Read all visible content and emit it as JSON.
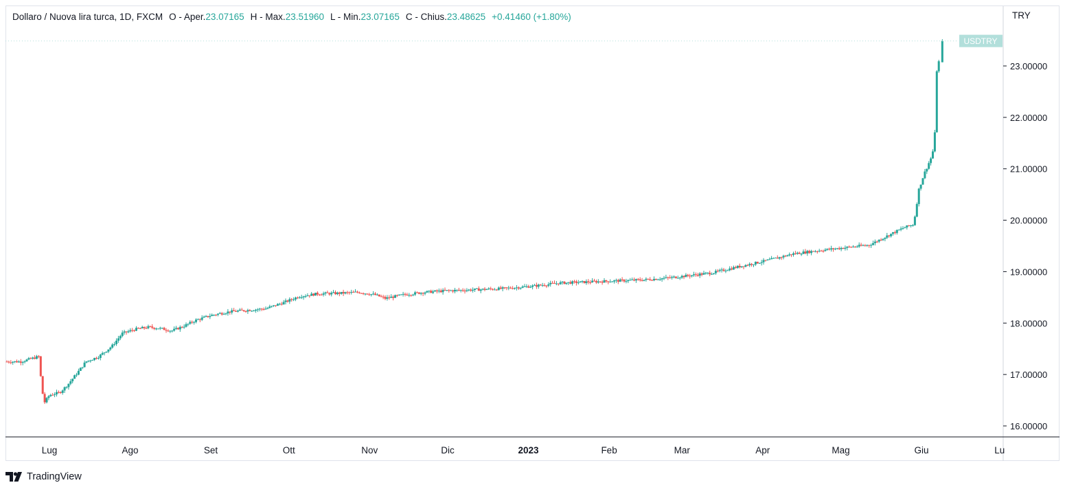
{
  "legend": {
    "symbol": "Dollaro / Nuova lira turca, 1D, FXCM",
    "open_label": "O - Aper.",
    "open": "23.07165",
    "high_label": "H - Max.",
    "high": "23.51960",
    "low_label": "L - Min.",
    "low": "23.07165",
    "close_label": "C - Chius.",
    "close": "23.48625",
    "change": "+0.41460 (+1.80%)"
  },
  "currency": "TRY",
  "watermark": "TradingView",
  "colors": {
    "up": "#26a69a",
    "down": "#ef5350",
    "badge": "#b2dfdb",
    "grid_line": "#e0e3eb"
  },
  "chart_data": {
    "type": "candlestick",
    "symbol": "USDTRY",
    "price_badge": "USDTRY",
    "ylim": [
      15.8,
      23.8
    ],
    "y_ticks": [
      "16.00000",
      "17.00000",
      "18.00000",
      "19.00000",
      "20.00000",
      "21.00000",
      "22.00000",
      "23.00000"
    ],
    "x_tick_labels": [
      "Lug",
      "Ago",
      "Set",
      "Ott",
      "Nov",
      "Dic",
      "2023",
      "Feb",
      "Mar",
      "Apr",
      "Mag",
      "Giu",
      "Lu"
    ],
    "x_tick_dates": [
      "2022-07-01",
      "2022-08-01",
      "2022-09-01",
      "2022-10-01",
      "2022-11-01",
      "2022-12-01",
      "2023-01-01",
      "2023-02-01",
      "2023-03-01",
      "2023-04-01",
      "2023-05-01",
      "2023-06-01",
      "2023-07-01"
    ],
    "close_series": [
      [
        "2022-06-20",
        17.25
      ],
      [
        "2022-06-27",
        17.35
      ],
      [
        "2022-06-28",
        16.75
      ],
      [
        "2022-06-29",
        16.45
      ],
      [
        "2022-07-01",
        16.6
      ],
      [
        "2022-07-05",
        16.65
      ],
      [
        "2022-07-08",
        16.8
      ],
      [
        "2022-07-12",
        17.05
      ],
      [
        "2022-07-15",
        17.25
      ],
      [
        "2022-07-20",
        17.35
      ],
      [
        "2022-07-25",
        17.55
      ],
      [
        "2022-07-29",
        17.8
      ],
      [
        "2022-08-03",
        17.88
      ],
      [
        "2022-08-08",
        17.92
      ],
      [
        "2022-08-12",
        17.9
      ],
      [
        "2022-08-17",
        17.85
      ],
      [
        "2022-08-22",
        17.95
      ],
      [
        "2022-08-26",
        18.05
      ],
      [
        "2022-09-01",
        18.15
      ],
      [
        "2022-09-08",
        18.22
      ],
      [
        "2022-09-15",
        18.25
      ],
      [
        "2022-09-22",
        18.28
      ],
      [
        "2022-09-29",
        18.4
      ],
      [
        "2022-10-05",
        18.52
      ],
      [
        "2022-10-12",
        18.57
      ],
      [
        "2022-10-20",
        18.58
      ],
      [
        "2022-10-28",
        18.6
      ],
      [
        "2022-11-03",
        18.55
      ],
      [
        "2022-11-07",
        18.48
      ],
      [
        "2022-11-14",
        18.55
      ],
      [
        "2022-11-22",
        18.6
      ],
      [
        "2022-12-01",
        18.63
      ],
      [
        "2022-12-12",
        18.65
      ],
      [
        "2022-12-22",
        18.67
      ],
      [
        "2023-01-03",
        18.72
      ],
      [
        "2023-01-13",
        18.78
      ],
      [
        "2023-01-24",
        18.8
      ],
      [
        "2023-02-03",
        18.82
      ],
      [
        "2023-02-14",
        18.84
      ],
      [
        "2023-02-24",
        18.88
      ],
      [
        "2023-03-03",
        18.92
      ],
      [
        "2023-03-13",
        18.98
      ],
      [
        "2023-03-23",
        19.1
      ],
      [
        "2023-04-03",
        19.22
      ],
      [
        "2023-04-13",
        19.35
      ],
      [
        "2023-04-24",
        19.42
      ],
      [
        "2023-05-05",
        19.48
      ],
      [
        "2023-05-12",
        19.52
      ],
      [
        "2023-05-19",
        19.7
      ],
      [
        "2023-05-25",
        19.85
      ],
      [
        "2023-05-29",
        19.92
      ],
      [
        "2023-05-31",
        20.6
      ],
      [
        "2023-06-02",
        20.9
      ],
      [
        "2023-06-05",
        21.25
      ],
      [
        "2023-06-06",
        21.5
      ],
      [
        "2023-06-07",
        23.1
      ],
      [
        "2023-06-08",
        23.07165
      ],
      [
        "2023-06-09",
        23.48625
      ]
    ],
    "last_candle": {
      "date": "2023-06-09",
      "open": 23.07165,
      "high": 23.5196,
      "low": 23.07165,
      "close": 23.48625
    }
  }
}
